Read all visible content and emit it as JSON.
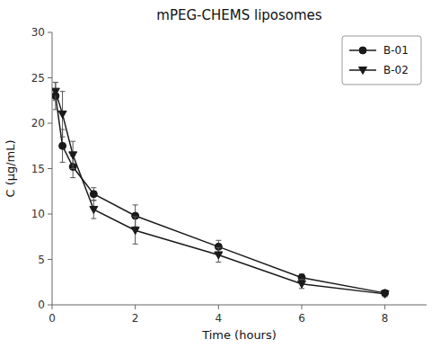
{
  "chart_data": {
    "type": "line",
    "title": "mPEG-CHEMS liposomes",
    "x_label": "Time (hours)",
    "y_label": "C (μg/mL)",
    "x": [
      0.083,
      0.25,
      0.5,
      1.0,
      2.0,
      4.0,
      6.0,
      8.0
    ],
    "series": [
      {
        "name": "B-01",
        "color": "#1a1a1a",
        "marker": "circle",
        "line_style": "solid",
        "values": [
          23.0,
          17.5,
          15.2,
          12.2,
          9.8,
          6.4,
          3.0,
          1.3
        ],
        "errors": [
          1.5,
          1.8,
          1.2,
          0.7,
          1.2,
          0.7,
          0.4,
          0.3
        ]
      },
      {
        "name": "B-02",
        "color": "#1a1a1a",
        "marker": "triangle-down",
        "line_style": "solid",
        "values": [
          23.5,
          21.0,
          16.5,
          10.5,
          8.2,
          5.5,
          2.3,
          1.2
        ],
        "errors": [
          1.0,
          2.5,
          1.5,
          1.0,
          1.5,
          0.8,
          0.5,
          0.3
        ]
      }
    ],
    "xlim": [
      0,
      9
    ],
    "ylim": [
      0,
      30
    ],
    "xticks": [
      0,
      2,
      4,
      6,
      8
    ],
    "yticks": [
      0,
      5,
      10,
      15,
      20,
      25,
      30
    ],
    "legend": "upper right",
    "grid": false
  }
}
